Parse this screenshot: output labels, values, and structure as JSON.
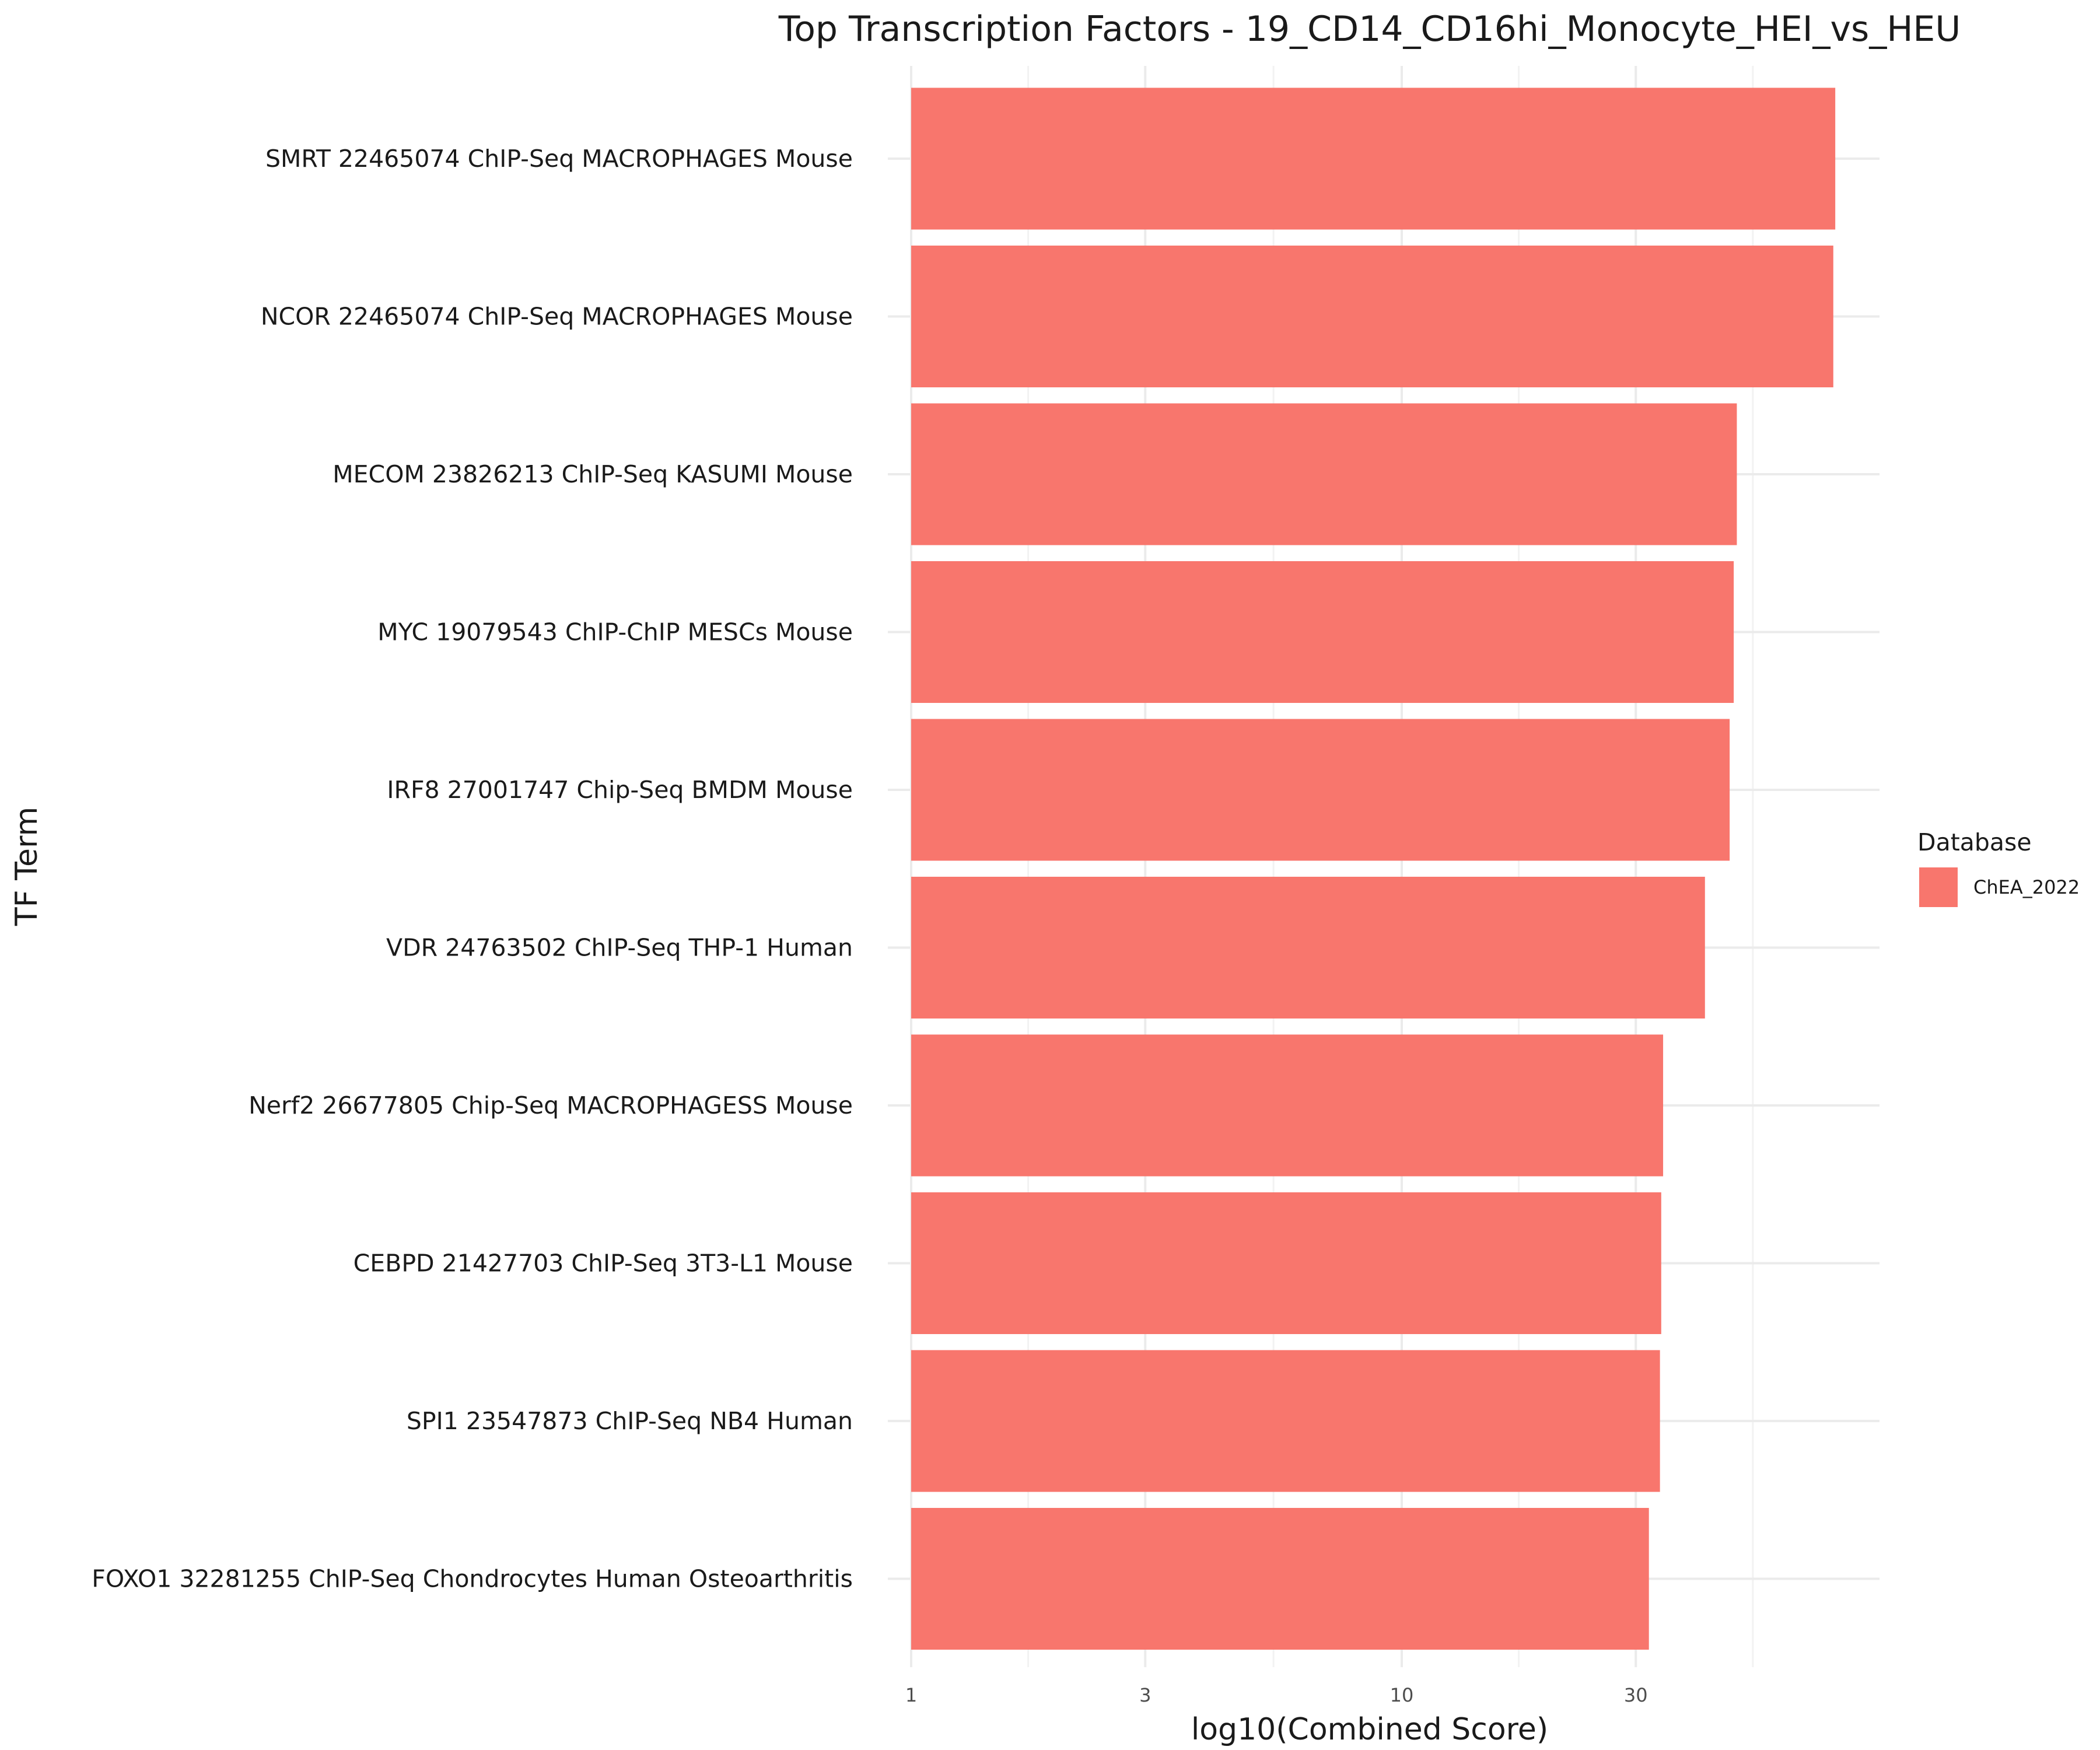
{
  "chart_data": {
    "type": "bar",
    "orientation": "horizontal",
    "title": "Top Transcription Factors - 19_CD14_CD16hi_Monocyte_HEI_vs_HEU",
    "xlabel": "log10(Combined Score)",
    "ylabel": "TF Term",
    "x_scale": "log10",
    "xlim": [
      1,
      90
    ],
    "x_ticks": [
      1,
      3,
      10,
      30
    ],
    "x_tick_labels": [
      "1",
      "3",
      "10",
      "30"
    ],
    "grid": true,
    "categories": [
      "SMRT 22465074 ChIP-Seq MACROPHAGES Mouse",
      "NCOR 22465074 ChIP-Seq MACROPHAGES Mouse",
      "MECOM 23826213 ChIP-Seq KASUMI Mouse",
      "MYC 19079543 ChIP-ChIP MESCs Mouse",
      "IRF8 27001747 Chip-Seq BMDM Mouse",
      "VDR 24763502 ChIP-Seq THP-1 Human",
      "Nerf2 26677805 Chip-Seq MACROPHAGESS Mouse",
      "CEBPD 21427703 ChIP-Seq 3T3-L1 Mouse",
      "SPI1 23547873 ChIP-Seq NB4 Human",
      "FOXO1 32281255 ChIP-Seq Chondrocytes Human Osteoarthritis"
    ],
    "series": [
      {
        "name": "ChEA_2022",
        "color": "#F8766D",
        "values": [
          76.5,
          75.8,
          48.2,
          47.5,
          46.6,
          41.5,
          34.1,
          33.8,
          33.6,
          31.9
        ]
      }
    ],
    "legend": {
      "title": "Database",
      "placement": "right",
      "entries": [
        "ChEA_2022"
      ]
    }
  },
  "colors": {
    "bar": "#F8766D",
    "grid_major": "#EBEBEB",
    "grid_minor": "#F2F2F2"
  }
}
